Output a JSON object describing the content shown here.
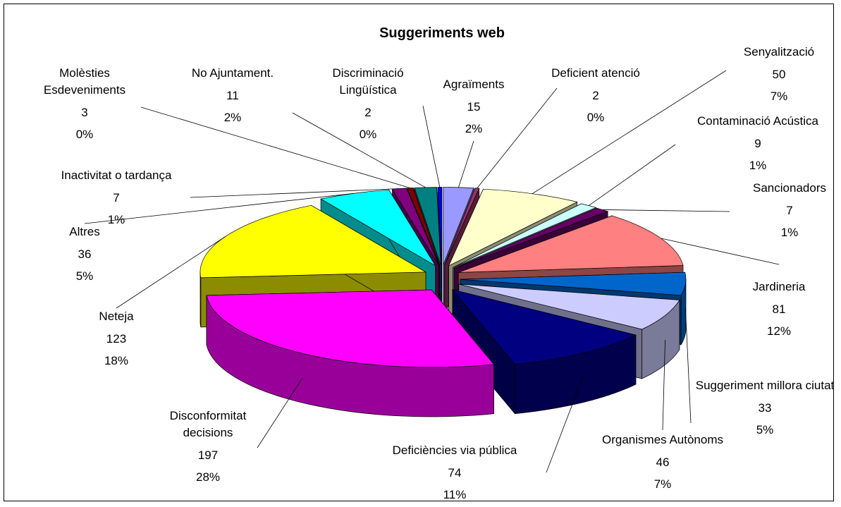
{
  "chart_data": {
    "type": "pie",
    "title": "Suggeriments web",
    "categories": [
      "Agraïments",
      "Deficient atenció",
      "Senyalització",
      "Contaminació Acústica",
      "Sancionadors",
      "Jardineria",
      "Suggeriment millora ciutat",
      "Organismes Autònoms",
      "Deficiències via pública",
      "Disconformitat decisions",
      "Neteja",
      "Altres",
      "Inactivitat o tardança",
      "Molèsties Esdeveniments",
      "No Ajuntament.",
      "Discriminació Lingüística"
    ],
    "values": [
      15,
      2,
      50,
      9,
      7,
      81,
      33,
      46,
      74,
      197,
      123,
      36,
      7,
      3,
      11,
      2
    ],
    "percentage_labels": [
      "2%",
      "0%",
      "7%",
      "1%",
      "1%",
      "12%",
      "5%",
      "7%",
      "11%",
      "28%",
      "18%",
      "5%",
      "1%",
      "0%",
      "2%",
      "0%"
    ],
    "colors": [
      "#9999ff",
      "#993366",
      "#ffffcc",
      "#ccffff",
      "#660066",
      "#ff8080",
      "#0066cc",
      "#ccccff",
      "#000080",
      "#ff00ff",
      "#ffff00",
      "#00ffff",
      "#800080",
      "#800000",
      "#008080",
      "#0000ff"
    ]
  }
}
